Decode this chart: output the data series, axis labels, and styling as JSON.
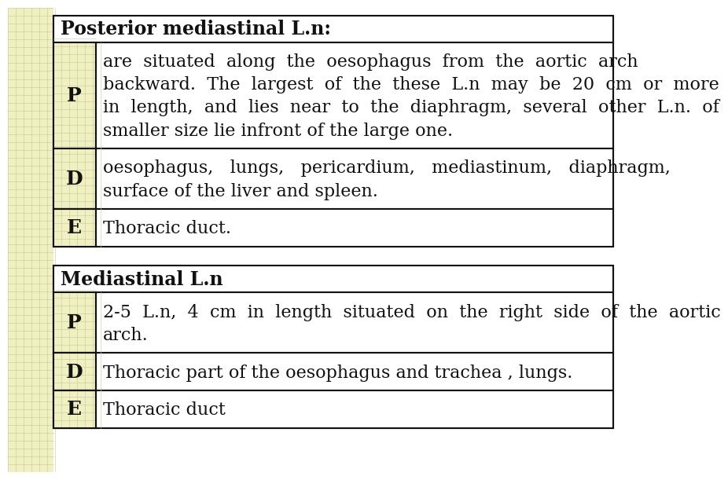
{
  "background_color": "#ffffff",
  "left_bg_color": "#f0f0c0",
  "table1_title": "Posterior mediastinal L.n:",
  "table1_rows": [
    {
      "label": "P",
      "text": "are  situated  along  the  oesophagus  from  the  aortic  arch\nbackward.  The  largest  of  the  these  L.n  may  be  20  cm  or  more\nin  length,  and  lies  near  to  the  diaphragm,  several  other  L.n.  of\nsmaller size lie infront of the large one."
    },
    {
      "label": "D",
      "text": "oesophagus,   lungs,   pericardium,   mediastinum,   diaphragm,\nsurface of the liver and spleen."
    },
    {
      "label": "E",
      "text": "Thoracic duct."
    }
  ],
  "table2_title": "Mediastinal L.n",
  "table2_rows": [
    {
      "label": "P",
      "text": "2-5  L.n,  4  cm  in  length  situated  on  the  right  side  of  the  aortic\narch."
    },
    {
      "label": "D",
      "text": "Thoracic part of the oesophagus and trachea , lungs."
    },
    {
      "label": "E",
      "text": "Thoracic duct"
    }
  ],
  "title_fontsize": 17,
  "cell_fontsize": 16,
  "label_fontsize": 18,
  "border_color": "#111111",
  "text_color": "#111111",
  "grid_color": "#d8d8a0",
  "grid_line_color": "#c8c8a8"
}
